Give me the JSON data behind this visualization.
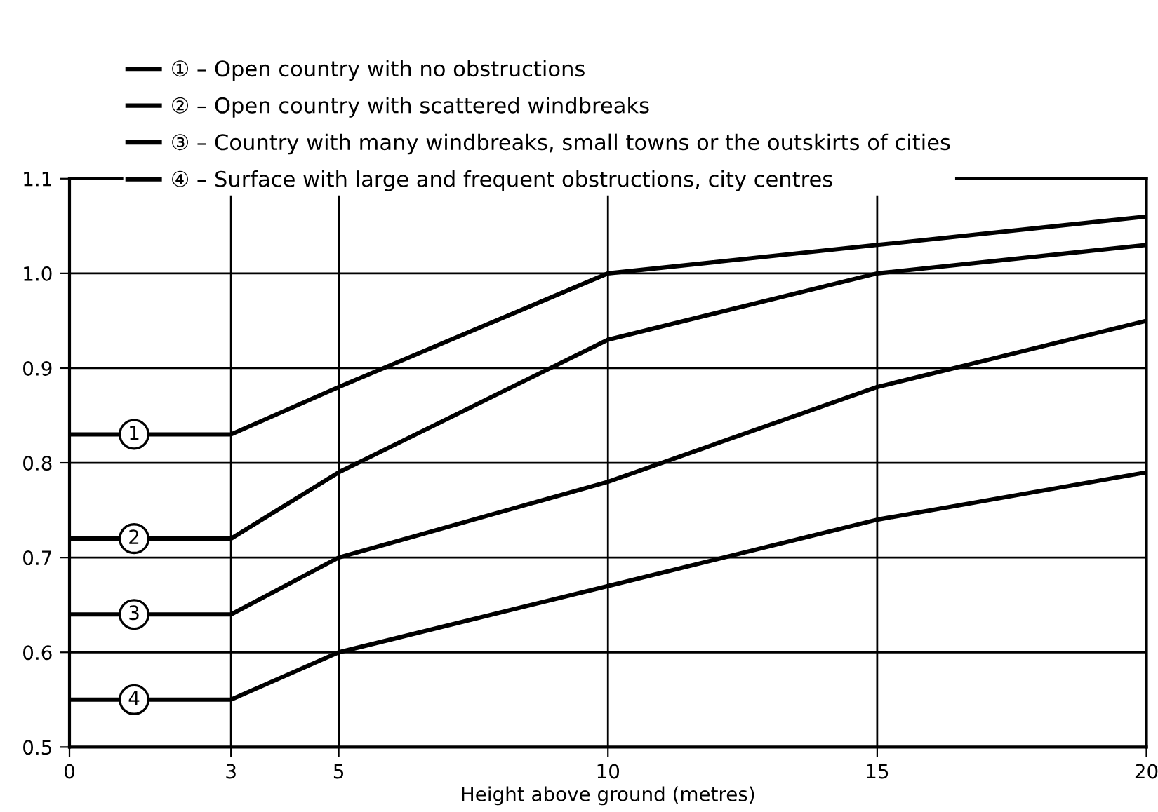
{
  "chart_data": {
    "type": "line",
    "xlabel": "Height above ground (metres)",
    "x": [
      0,
      3,
      5,
      10,
      15,
      20
    ],
    "series": [
      {
        "name": "① – Open country with no obstructions",
        "color": "#000000",
        "values": [
          0.83,
          0.83,
          0.88,
          1.0,
          1.03,
          1.06
        ]
      },
      {
        "name": "② – Open country with scattered windbreaks",
        "color": "#000000",
        "values": [
          0.72,
          0.72,
          0.79,
          0.93,
          1.0,
          1.03
        ]
      },
      {
        "name": "③ – Country with many windbreaks, small towns or the outskirts of cities",
        "color": "#000000",
        "values": [
          0.64,
          0.64,
          0.7,
          0.78,
          0.88,
          0.95
        ]
      },
      {
        "name": "④ – Surface with large and frequent obstructions, city centres",
        "color": "#000000",
        "values": [
          0.55,
          0.55,
          0.6,
          0.67,
          0.74,
          0.79
        ]
      }
    ],
    "annotations": [
      "1",
      "2",
      "3",
      "4"
    ],
    "xlim": [
      0,
      20
    ],
    "xticks": [
      0,
      3,
      5,
      10,
      15,
      20
    ],
    "ylim": [
      0.5,
      1.1
    ],
    "yticks": [
      0.5,
      0.6,
      0.7,
      0.8,
      0.9,
      {
        "value": 1.0,
        "label": "1.0"
      },
      1.1
    ],
    "grid": true,
    "legend": "top left",
    "marker": "none",
    "line_style": "solid"
  }
}
